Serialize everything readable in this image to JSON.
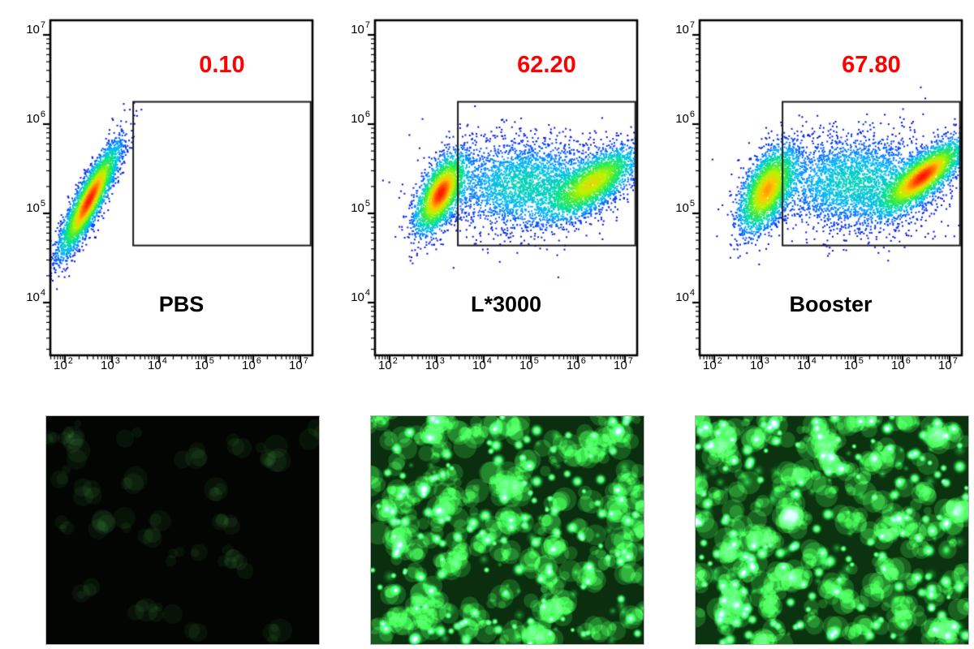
{
  "figure": {
    "accent_red": "#ff0000",
    "axis_color": "#000000",
    "panel_count": 3
  },
  "chart_data": [
    {
      "id": "pbs",
      "type": "scatter",
      "title": "PBS",
      "gate_label": "0.10",
      "gate_percent": 0.1,
      "x_scale": "log10",
      "y_scale": "log10",
      "tick_base": "10",
      "x_tick_exponents": [
        2,
        3,
        4,
        5,
        6,
        7
      ],
      "y_tick_exponents": [
        4,
        5,
        6,
        7
      ],
      "x_range_exp": [
        1.69,
        7.26
      ],
      "y_range_exp": [
        3.41,
        7.16
      ],
      "gate_exp": {
        "x0": 3.45,
        "x1": 7.22,
        "y0": 4.64,
        "y1": 6.25
      },
      "colormap": "density-jet",
      "grid": false,
      "frame": true,
      "populations_log10": [
        {
          "n": 3800,
          "mean": [
            2.52,
            5.15
          ],
          "sigma": [
            0.32,
            0.31
          ],
          "rho": 0.88
        }
      ]
    },
    {
      "id": "l3000",
      "type": "scatter",
      "title": "L*3000",
      "gate_label": "62.20",
      "gate_percent": 62.2,
      "x_scale": "log10",
      "y_scale": "log10",
      "tick_base": "10",
      "x_tick_exponents": [
        2,
        3,
        4,
        5,
        6,
        7
      ],
      "y_tick_exponents": [
        4,
        5,
        6,
        7
      ],
      "x_range_exp": [
        1.69,
        7.26
      ],
      "y_range_exp": [
        3.41,
        7.16
      ],
      "gate_exp": {
        "x0": 3.45,
        "x1": 7.22,
        "y0": 4.64,
        "y1": 6.25
      },
      "colormap": "density-jet",
      "grid": false,
      "frame": true,
      "populations_log10": [
        {
          "n": 2600,
          "mean": [
            3.08,
            5.22
          ],
          "sigma": [
            0.27,
            0.22
          ],
          "rho": 0.6
        },
        {
          "n": 3000,
          "mean": [
            4.9,
            5.32
          ],
          "sigma": [
            0.85,
            0.26
          ],
          "rho": 0.05
        },
        {
          "n": 2400,
          "mean": [
            6.35,
            5.35
          ],
          "sigma": [
            0.48,
            0.2
          ],
          "rho": 0.7
        }
      ]
    },
    {
      "id": "booster",
      "type": "scatter",
      "title": "Booster",
      "gate_label": "67.80",
      "gate_percent": 67.8,
      "x_scale": "log10",
      "y_scale": "log10",
      "tick_base": "10",
      "x_tick_exponents": [
        2,
        3,
        4,
        5,
        6,
        7
      ],
      "y_tick_exponents": [
        4,
        5,
        6,
        7
      ],
      "x_range_exp": [
        1.69,
        7.26
      ],
      "y_range_exp": [
        3.41,
        7.16
      ],
      "gate_exp": {
        "x0": 3.45,
        "x1": 7.22,
        "y0": 4.64,
        "y1": 6.25
      },
      "colormap": "density-jet",
      "grid": false,
      "frame": true,
      "populations_log10": [
        {
          "n": 2700,
          "mean": [
            3.12,
            5.26
          ],
          "sigma": [
            0.3,
            0.24
          ],
          "rho": 0.55
        },
        {
          "n": 3200,
          "mean": [
            5.0,
            5.35
          ],
          "sigma": [
            0.9,
            0.27
          ],
          "rho": 0.05
        },
        {
          "n": 2900,
          "mean": [
            6.45,
            5.42
          ],
          "sigma": [
            0.44,
            0.2
          ],
          "rho": 0.78
        }
      ]
    }
  ],
  "micrographs": [
    {
      "id": "pbs",
      "background": "#020502",
      "cluster_color": "rgba(12,28,12,0.5)",
      "cluster_count": 30,
      "medium_cell_count": 0,
      "bright_cell_count": 0,
      "bright_color_rgb": [
        46,
        224,
        88
      ]
    },
    {
      "id": "l3000",
      "background": "#0a2e0e",
      "cluster_color": "rgba(32,112,40,0.40)",
      "cluster_count": 150,
      "medium_cell_count": 70,
      "bright_cell_count": 150,
      "bright_color_rgb": [
        46,
        224,
        88
      ]
    },
    {
      "id": "booster",
      "background": "#0b330f",
      "cluster_color": "rgba(34,118,42,0.40)",
      "cluster_count": 160,
      "medium_cell_count": 80,
      "bright_cell_count": 170,
      "bright_color_rgb": [
        46,
        230,
        88
      ]
    }
  ]
}
